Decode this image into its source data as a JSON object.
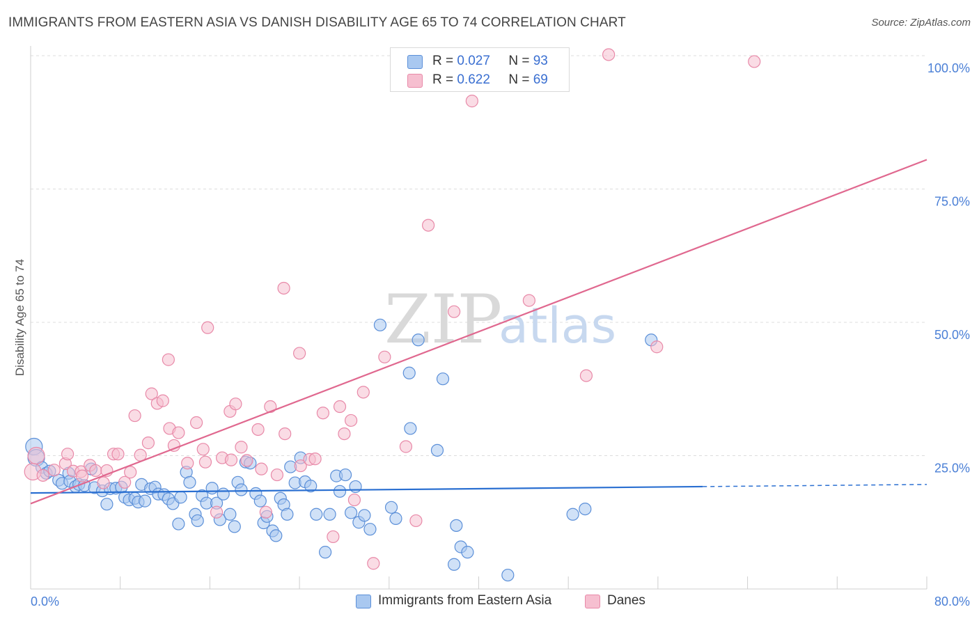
{
  "header": {
    "title": "IMMIGRANTS FROM EASTERN ASIA VS DANISH DISABILITY AGE 65 TO 74 CORRELATION CHART",
    "source": "Source: ZipAtlas.com"
  },
  "watermark": {
    "zip": "ZIP",
    "atlas": "atlas"
  },
  "legend": {
    "rows": [
      {
        "r_label": "R =",
        "r_value": "0.027",
        "n_label": "N =",
        "n_value": "93"
      },
      {
        "r_label": "R =",
        "r_value": "0.622",
        "n_label": "N =",
        "n_value": "69"
      }
    ]
  },
  "colors": {
    "blue_fill": "#a9c8f0",
    "blue_stroke": "#5b8fd8",
    "blue_line": "#2a6fd1",
    "pink_fill": "#f6bfd0",
    "pink_stroke": "#e889a8",
    "pink_line": "#e0688f",
    "tick": "#4a7fd6"
  },
  "chart_data": {
    "type": "scatter",
    "title": "IMMIGRANTS FROM EASTERN ASIA VS DANISH DISABILITY AGE 65 TO 74 CORRELATION CHART",
    "xlabel": "",
    "ylabel": "Disability Age 65 to 74",
    "xlim": [
      0,
      80
    ],
    "ylim": [
      0,
      100
    ],
    "x_ticks": [
      "0.0%",
      "80.0%"
    ],
    "y_ticks": [
      {
        "value": 100,
        "label": "100.0%"
      },
      {
        "value": 75,
        "label": "75.0%"
      },
      {
        "value": 50,
        "label": "50.0%"
      },
      {
        "value": 25,
        "label": "25.0%"
      }
    ],
    "grid": "horizontal dashed",
    "legend_position": "top-center",
    "series": [
      {
        "name": "Immigrants from Eastern Asia",
        "color": "#5b8fd8",
        "trend": {
          "x": [
            0,
            60
          ],
          "y": [
            18.0,
            19.2
          ],
          "dashed_to_x": 80,
          "dashed_y": 19.6
        },
        "points": [
          [
            0.3,
            26.7
          ],
          [
            0.5,
            24.6
          ],
          [
            1.0,
            22.8
          ],
          [
            1.4,
            21.7
          ],
          [
            1.7,
            22.1
          ],
          [
            2.5,
            20.4
          ],
          [
            2.8,
            19.8
          ],
          [
            3.4,
            21.7
          ],
          [
            3.5,
            20.2
          ],
          [
            4.0,
            19.2
          ],
          [
            4.3,
            19.6
          ],
          [
            4.8,
            19.4
          ],
          [
            5.4,
            22.5
          ],
          [
            5.7,
            19.0
          ],
          [
            6.4,
            18.4
          ],
          [
            6.8,
            15.9
          ],
          [
            7.1,
            18.8
          ],
          [
            7.6,
            18.9
          ],
          [
            8.1,
            19.1
          ],
          [
            8.4,
            17.2
          ],
          [
            8.8,
            16.7
          ],
          [
            9.3,
            17.0
          ],
          [
            9.6,
            16.3
          ],
          [
            9.9,
            19.6
          ],
          [
            10.2,
            16.5
          ],
          [
            10.7,
            18.8
          ],
          [
            11.1,
            19.1
          ],
          [
            11.4,
            17.8
          ],
          [
            11.9,
            17.7
          ],
          [
            12.3,
            16.9
          ],
          [
            12.7,
            16.0
          ],
          [
            13.2,
            12.2
          ],
          [
            13.4,
            17.2
          ],
          [
            13.9,
            21.9
          ],
          [
            14.2,
            20.0
          ],
          [
            14.7,
            14.0
          ],
          [
            14.9,
            12.8
          ],
          [
            15.3,
            17.5
          ],
          [
            15.7,
            16.1
          ],
          [
            16.2,
            18.9
          ],
          [
            16.6,
            16.1
          ],
          [
            16.9,
            13.0
          ],
          [
            17.2,
            17.8
          ],
          [
            17.8,
            14.0
          ],
          [
            18.2,
            11.7
          ],
          [
            18.5,
            20.0
          ],
          [
            18.8,
            18.6
          ],
          [
            19.2,
            23.8
          ],
          [
            19.6,
            23.6
          ],
          [
            20.1,
            17.9
          ],
          [
            20.5,
            16.5
          ],
          [
            20.8,
            12.4
          ],
          [
            21.1,
            13.6
          ],
          [
            21.6,
            10.9
          ],
          [
            21.9,
            10.0
          ],
          [
            22.3,
            17.0
          ],
          [
            22.6,
            15.8
          ],
          [
            22.9,
            14.0
          ],
          [
            23.2,
            22.9
          ],
          [
            23.6,
            19.9
          ],
          [
            24.1,
            24.6
          ],
          [
            24.5,
            20.1
          ],
          [
            25.0,
            19.3
          ],
          [
            25.5,
            14.0
          ],
          [
            26.3,
            6.9
          ],
          [
            26.7,
            14.0
          ],
          [
            27.3,
            21.2
          ],
          [
            27.6,
            18.3
          ],
          [
            28.1,
            21.4
          ],
          [
            28.6,
            14.3
          ],
          [
            29.0,
            19.2
          ],
          [
            29.3,
            12.5
          ],
          [
            29.8,
            13.8
          ],
          [
            30.3,
            11.2
          ],
          [
            31.2,
            49.5
          ],
          [
            32.2,
            15.3
          ],
          [
            32.6,
            13.2
          ],
          [
            33.8,
            40.5
          ],
          [
            33.9,
            30.1
          ],
          [
            34.6,
            46.7
          ],
          [
            36.3,
            26.0
          ],
          [
            36.8,
            39.4
          ],
          [
            37.8,
            4.6
          ],
          [
            38.0,
            11.9
          ],
          [
            38.4,
            7.9
          ],
          [
            39.0,
            6.9
          ],
          [
            42.6,
            2.6
          ],
          [
            48.4,
            14.0
          ],
          [
            49.5,
            15.0
          ],
          [
            55.4,
            46.7
          ]
        ]
      },
      {
        "name": "Danes",
        "color": "#e889a8",
        "trend": {
          "x": [
            0,
            80
          ],
          "y": [
            16.0,
            80.5
          ]
        },
        "points": [
          [
            0.2,
            22.0
          ],
          [
            0.5,
            25.0
          ],
          [
            1.1,
            21.3
          ],
          [
            2.1,
            22.3
          ],
          [
            3.1,
            23.5
          ],
          [
            3.3,
            25.3
          ],
          [
            3.8,
            22.1
          ],
          [
            4.5,
            22.0
          ],
          [
            4.6,
            21.2
          ],
          [
            5.3,
            23.2
          ],
          [
            5.8,
            22.2
          ],
          [
            6.5,
            19.9
          ],
          [
            6.8,
            22.2
          ],
          [
            7.4,
            25.3
          ],
          [
            7.8,
            25.3
          ],
          [
            8.4,
            20.0
          ],
          [
            8.9,
            21.9
          ],
          [
            9.3,
            32.5
          ],
          [
            9.8,
            25.1
          ],
          [
            10.5,
            27.4
          ],
          [
            10.8,
            36.6
          ],
          [
            11.3,
            34.8
          ],
          [
            11.8,
            35.3
          ],
          [
            12.3,
            43.0
          ],
          [
            12.4,
            30.1
          ],
          [
            12.8,
            26.9
          ],
          [
            13.2,
            29.3
          ],
          [
            14.0,
            23.6
          ],
          [
            14.8,
            31.2
          ],
          [
            15.4,
            26.2
          ],
          [
            15.6,
            23.8
          ],
          [
            15.8,
            49.0
          ],
          [
            16.6,
            14.4
          ],
          [
            17.1,
            24.6
          ],
          [
            17.8,
            33.3
          ],
          [
            17.9,
            24.2
          ],
          [
            18.3,
            34.7
          ],
          [
            18.8,
            26.6
          ],
          [
            19.3,
            24.1
          ],
          [
            20.3,
            29.9
          ],
          [
            20.6,
            22.5
          ],
          [
            21.0,
            14.4
          ],
          [
            21.4,
            34.2
          ],
          [
            22.0,
            21.4
          ],
          [
            22.6,
            56.4
          ],
          [
            22.7,
            29.1
          ],
          [
            24.0,
            44.2
          ],
          [
            24.1,
            23.1
          ],
          [
            24.9,
            24.3
          ],
          [
            25.4,
            24.4
          ],
          [
            26.1,
            33.0
          ],
          [
            27.0,
            9.8
          ],
          [
            27.6,
            34.2
          ],
          [
            28.0,
            29.1
          ],
          [
            28.6,
            31.6
          ],
          [
            28.9,
            16.7
          ],
          [
            29.7,
            36.9
          ],
          [
            30.6,
            4.8
          ],
          [
            31.6,
            43.5
          ],
          [
            33.5,
            26.7
          ],
          [
            34.4,
            12.8
          ],
          [
            35.5,
            68.2
          ],
          [
            37.8,
            52.0
          ],
          [
            39.4,
            91.5
          ],
          [
            44.5,
            54.1
          ],
          [
            49.6,
            40.0
          ],
          [
            51.6,
            100.2
          ],
          [
            55.9,
            45.4
          ],
          [
            64.6,
            98.9
          ]
        ]
      }
    ]
  },
  "bottom_legend": {
    "items": [
      {
        "label": "Immigrants from Eastern Asia"
      },
      {
        "label": "Danes"
      }
    ]
  }
}
